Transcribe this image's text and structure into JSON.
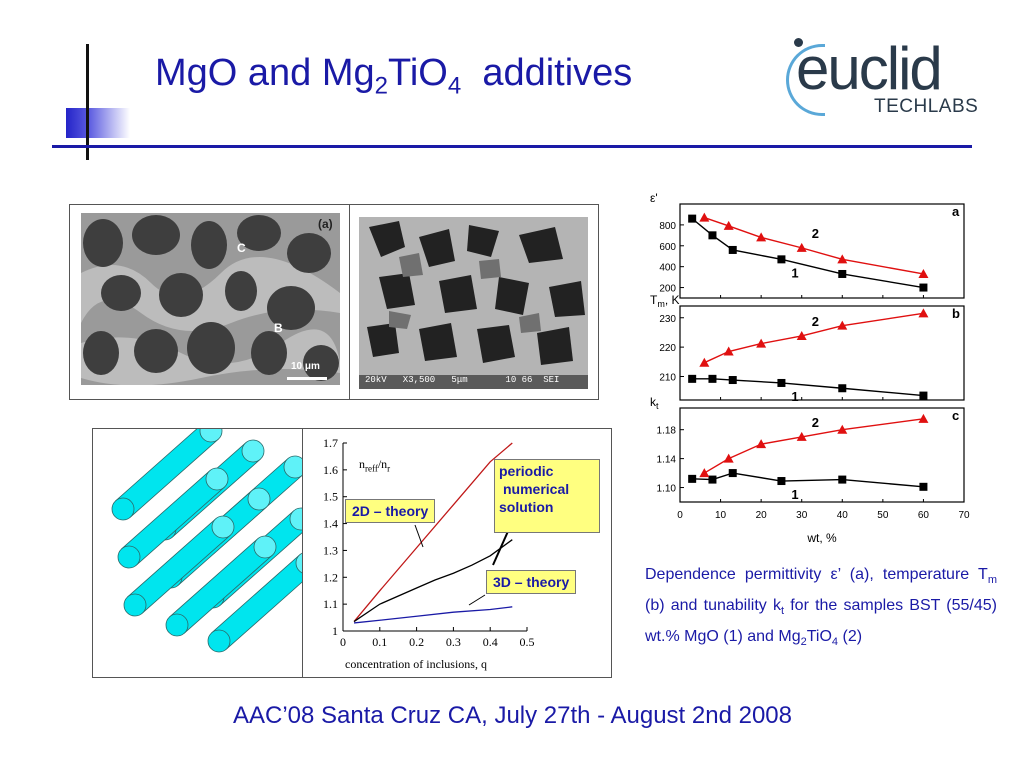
{
  "slide": {
    "title_main": "MgO and Mg",
    "title_sub1": "2",
    "title_mid": "TiO",
    "title_sub2": "4",
    "title_end": "additives",
    "footer": "AAC’08 Santa Cruz CA,   July 27th - August 2nd 2008"
  },
  "logo": {
    "main": "euclid",
    "sub": "TECHLABS"
  },
  "micrographs": {
    "left_panel_label": "(a)",
    "label_c": "C",
    "label_b": "B",
    "scale_left": "10 μm",
    "info_right": "20kV   X3,500   5μm       10 66  SEI"
  },
  "inclusion_chart": {
    "chart_data": {
      "type": "line",
      "ylabel": "n",
      "ylabel_sub1": "reff",
      "ylabel_mid": "/n",
      "ylabel_sub2": "r",
      "xlabel": "concentration of inclusions, q",
      "xlim": [
        0,
        0.5
      ],
      "ylim": [
        1,
        1.7
      ],
      "x_ticks": [
        "0",
        "0.1",
        "0.2",
        "0.3",
        "0.4",
        "0.5"
      ],
      "y_ticks": [
        "1",
        "1.1",
        "1.2",
        "1.3",
        "1.4",
        "1.5",
        "1.6",
        "1.7"
      ],
      "series": [
        {
          "name": "2D – theory",
          "color": "#c01818",
          "x": [
            0.03,
            0.1,
            0.2,
            0.3,
            0.4,
            0.46
          ],
          "y": [
            1.035,
            1.15,
            1.31,
            1.47,
            1.63,
            1.72
          ]
        },
        {
          "name": "periodic numerical solution",
          "color": "#000000",
          "x": [
            0.03,
            0.1,
            0.2,
            0.25,
            0.3,
            0.35,
            0.4,
            0.46
          ],
          "y": [
            1.035,
            1.1,
            1.16,
            1.19,
            1.215,
            1.245,
            1.28,
            1.34
          ]
        },
        {
          "name": "3D – theory",
          "color": "#1a1aa6",
          "x": [
            0.03,
            0.1,
            0.2,
            0.3,
            0.4,
            0.46
          ],
          "y": [
            1.03,
            1.04,
            1.055,
            1.07,
            1.08,
            1.09
          ]
        }
      ]
    },
    "callouts": {
      "periodic_l1": "periodic",
      "periodic_l2": "numerical",
      "periodic_l3": "solution",
      "two_d": "2D – theory",
      "three_d": "3D – theory"
    }
  },
  "property_chart": {
    "chart_data": {
      "type": "scatter",
      "xlabel": "wt, %",
      "xlim": [
        0,
        70
      ],
      "x_ticks": [
        "0",
        "10",
        "20",
        "30",
        "40",
        "50",
        "60",
        "70"
      ],
      "panels": [
        {
          "letter": "a",
          "ylabel": "ε'",
          "ylim": [
            100,
            1000
          ],
          "y_ticks": [
            "200",
            "400",
            "600",
            "800"
          ],
          "y_tick_values": [
            200,
            400,
            600,
            800
          ],
          "series": [
            {
              "name": "1",
              "color": "#000000",
              "marker": "square",
              "x": [
                3,
                8,
                13,
                25,
                40,
                60
              ],
              "y": [
                860,
                700,
                560,
                470,
                330,
                200
              ]
            },
            {
              "name": "2",
              "color": "#e01010",
              "marker": "triangle",
              "x": [
                6,
                12,
                20,
                30,
                40,
                60
              ],
              "y": [
                870,
                790,
                680,
                580,
                470,
                330
              ]
            }
          ]
        },
        {
          "letter": "b",
          "ylabel": "T",
          "ylabel_sub": "m",
          "ylabel_unit": ", K",
          "ylim": [
            202,
            234
          ],
          "y_ticks": [
            "210",
            "220",
            "230"
          ],
          "y_tick_values": [
            210,
            220,
            230
          ],
          "series": [
            {
              "name": "1",
              "color": "#000000",
              "marker": "square",
              "x": [
                3,
                8,
                13,
                25,
                40,
                60
              ],
              "y": [
                209.2,
                209.2,
                208.8,
                207.8,
                206,
                203.5
              ]
            },
            {
              "name": "2",
              "color": "#e01010",
              "marker": "triangle",
              "x": [
                6,
                12,
                20,
                30,
                40,
                60
              ],
              "y": [
                214.7,
                218.5,
                221.2,
                223.8,
                227.3,
                231.5
              ]
            }
          ]
        },
        {
          "letter": "c",
          "ylabel": "k",
          "ylabel_sub": "t",
          "ylim": [
            1.08,
            1.21
          ],
          "y_ticks": [
            "1.10",
            "1.14",
            "1.18"
          ],
          "y_tick_values": [
            1.1,
            1.14,
            1.18
          ],
          "series": [
            {
              "name": "1",
              "color": "#000000",
              "marker": "square",
              "x": [
                3,
                8,
                13,
                25,
                40,
                60
              ],
              "y": [
                1.112,
                1.111,
                1.12,
                1.109,
                1.111,
                1.101
              ]
            },
            {
              "name": "2",
              "color": "#e01010",
              "marker": "triangle",
              "x": [
                6,
                12,
                20,
                30,
                40,
                60
              ],
              "y": [
                1.12,
                1.14,
                1.16,
                1.17,
                1.18,
                1.195
              ]
            }
          ]
        }
      ]
    }
  },
  "caption": {
    "l1": "Dependence permittivity ε’ (a), temperature T",
    "sub_m": "m",
    "l2": " (b) and tunability k",
    "sub_t": "t",
    "l3": "  for the samples BST (55/45) wt.% MgO (1) and Mg",
    "sub_2": "2",
    "l4": "TiO",
    "sub_4": "4",
    "l5": " (2)"
  },
  "colors": {
    "accent": "#1a1aa6",
    "callout_bg": "#ffff80",
    "cylinder": "#00e5ee",
    "red_series": "#e01010"
  }
}
